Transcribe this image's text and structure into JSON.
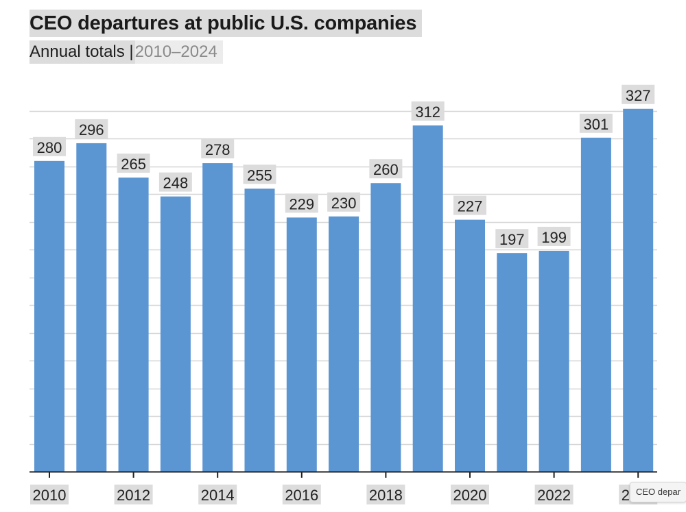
{
  "header": {
    "title": "CEO departures at public U.S. companies",
    "subtitle_main": "Annual totals |",
    "subtitle_range": " 2010–2024"
  },
  "tooltip": {
    "text": "CEO depar"
  },
  "colors": {
    "bar": "#5b96d2",
    "grid": "#d6d6d6",
    "axis": "#222222",
    "label_bg": "#dcdcdc"
  },
  "chart_data": {
    "type": "bar",
    "title": "CEO departures at public U.S. companies",
    "subtitle": "Annual totals | 2010–2024",
    "categories": [
      "2010",
      "2011",
      "2012",
      "2013",
      "2014",
      "2015",
      "2016",
      "2017",
      "2018",
      "2019",
      "2020",
      "2021",
      "2022",
      "2023",
      "2024"
    ],
    "values": [
      280,
      296,
      265,
      248,
      278,
      255,
      229,
      230,
      260,
      312,
      227,
      197,
      199,
      301,
      327
    ],
    "x_tick_labels": [
      "2010",
      "2012",
      "2014",
      "2016",
      "2018",
      "2020",
      "2022",
      "2024"
    ],
    "xlabel": "",
    "ylabel": "",
    "ylim": [
      0,
      325
    ],
    "y_grid_step": 25,
    "grid": true,
    "data_labels": true,
    "legend": "none"
  }
}
